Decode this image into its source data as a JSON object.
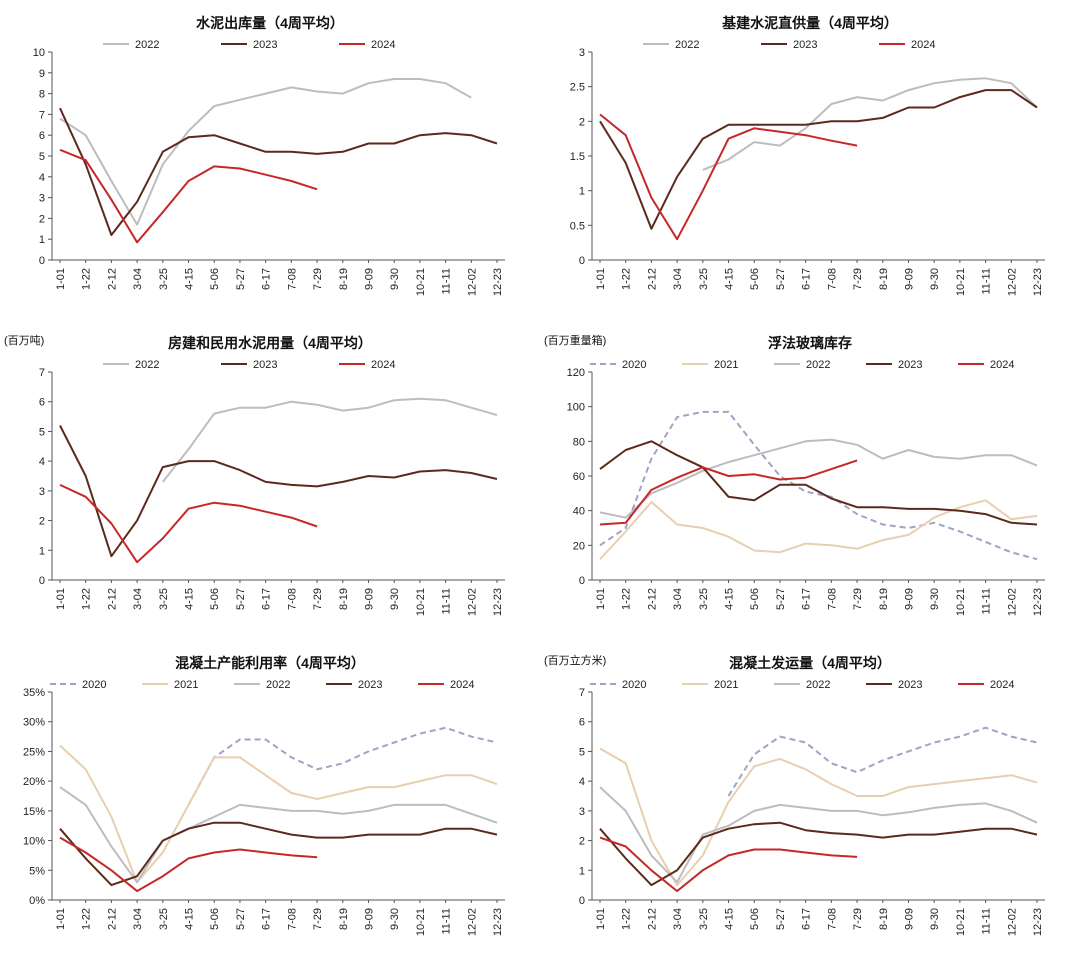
{
  "chart_data": [
    {
      "type": "line",
      "title": "水泥出库量（4周平均）",
      "unit": "",
      "ylim": [
        0,
        10
      ],
      "yticks": [
        "0",
        "1",
        "2",
        "3",
        "4",
        "5",
        "6",
        "7",
        "8",
        "9",
        "10"
      ],
      "categories": [
        "1-01",
        "1-22",
        "2-12",
        "3-04",
        "3-25",
        "4-15",
        "5-06",
        "5-27",
        "6-17",
        "7-08",
        "7-29",
        "8-19",
        "9-09",
        "9-30",
        "10-21",
        "11-11",
        "12-02",
        "12-23"
      ],
      "series": [
        {
          "name": "2022",
          "color": "#bdbdbd",
          "dash": "",
          "values": [
            6.8,
            6.0,
            3.8,
            1.7,
            4.6,
            6.2,
            7.4,
            7.7,
            8.0,
            8.3,
            8.1,
            8.0,
            8.5,
            8.7,
            8.7,
            8.5,
            7.8,
            null
          ]
        },
        {
          "name": "2023",
          "color": "#5c2a1c",
          "dash": "",
          "values": [
            7.3,
            4.6,
            1.2,
            2.8,
            5.2,
            5.9,
            6.0,
            5.6,
            5.2,
            5.2,
            5.1,
            5.2,
            5.6,
            5.6,
            6.0,
            6.1,
            6.0,
            5.6
          ]
        },
        {
          "name": "2024",
          "color": "#c62828",
          "dash": "",
          "values": [
            5.3,
            4.8,
            2.9,
            0.85,
            2.3,
            3.8,
            4.5,
            4.4,
            4.1,
            3.8,
            3.4,
            null,
            null,
            null,
            null,
            null,
            null,
            null
          ]
        }
      ]
    },
    {
      "type": "line",
      "title": "基建水泥直供量（4周平均）",
      "unit": "",
      "ylim": [
        0,
        3
      ],
      "yticks": [
        "0",
        "0.5",
        "1",
        "1.5",
        "2",
        "2.5",
        "3"
      ],
      "categories": [
        "1-01",
        "1-22",
        "2-12",
        "3-04",
        "3-25",
        "4-15",
        "5-06",
        "5-27",
        "6-17",
        "7-08",
        "7-29",
        "8-19",
        "9-09",
        "9-30",
        "10-21",
        "11-11",
        "12-02",
        "12-23"
      ],
      "series": [
        {
          "name": "2022",
          "color": "#bdbdbd",
          "dash": "",
          "values": [
            null,
            null,
            null,
            null,
            1.3,
            1.45,
            1.7,
            1.65,
            1.9,
            2.25,
            2.35,
            2.3,
            2.45,
            2.55,
            2.6,
            2.62,
            2.55,
            2.2
          ]
        },
        {
          "name": "2023",
          "color": "#5c2a1c",
          "dash": "",
          "values": [
            2.0,
            1.4,
            0.45,
            1.2,
            1.75,
            1.95,
            1.95,
            1.95,
            1.95,
            2.0,
            2.0,
            2.05,
            2.2,
            2.2,
            2.35,
            2.45,
            2.45,
            2.2
          ]
        },
        {
          "name": "2024",
          "color": "#c62828",
          "dash": "",
          "values": [
            2.1,
            1.8,
            0.9,
            0.3,
            1.0,
            1.75,
            1.9,
            1.85,
            1.8,
            1.72,
            1.65,
            null,
            null,
            null,
            null,
            null,
            null,
            null
          ]
        }
      ]
    },
    {
      "type": "line",
      "title": "房建和民用水泥用量（4周平均）",
      "unit": "(百万吨)",
      "ylim": [
        0,
        7
      ],
      "yticks": [
        "0",
        "1",
        "2",
        "3",
        "4",
        "5",
        "6",
        "7"
      ],
      "categories": [
        "1-01",
        "1-22",
        "2-12",
        "3-04",
        "3-25",
        "4-15",
        "5-06",
        "5-27",
        "6-17",
        "7-08",
        "7-29",
        "8-19",
        "9-09",
        "9-30",
        "10-21",
        "11-11",
        "12-02",
        "12-23"
      ],
      "series": [
        {
          "name": "2022",
          "color": "#bdbdbd",
          "dash": "",
          "values": [
            null,
            null,
            null,
            null,
            3.3,
            4.4,
            5.6,
            5.8,
            5.8,
            6.0,
            5.9,
            5.7,
            5.8,
            6.05,
            6.1,
            6.05,
            5.8,
            5.55
          ]
        },
        {
          "name": "2023",
          "color": "#5c2a1c",
          "dash": "",
          "values": [
            5.2,
            3.5,
            0.8,
            2.0,
            3.8,
            4.0,
            4.0,
            3.7,
            3.3,
            3.2,
            3.15,
            3.3,
            3.5,
            3.45,
            3.65,
            3.7,
            3.6,
            3.4
          ]
        },
        {
          "name": "2024",
          "color": "#c62828",
          "dash": "",
          "values": [
            3.2,
            2.8,
            1.9,
            0.6,
            1.4,
            2.4,
            2.6,
            2.5,
            2.3,
            2.1,
            1.8,
            null,
            null,
            null,
            null,
            null,
            null,
            null
          ]
        }
      ]
    },
    {
      "type": "line",
      "title": "浮法玻璃库存",
      "unit": "(百万重量箱)",
      "ylim": [
        0,
        120
      ],
      "yticks": [
        "0",
        "20",
        "40",
        "60",
        "80",
        "100",
        "120"
      ],
      "categories": [
        "1-01",
        "1-22",
        "2-12",
        "3-04",
        "3-25",
        "4-15",
        "5-06",
        "5-27",
        "6-17",
        "7-08",
        "7-29",
        "8-19",
        "9-09",
        "9-30",
        "10-21",
        "11-11",
        "12-02",
        "12-23"
      ],
      "series": [
        {
          "name": "2020",
          "color": "#9fa3c4",
          "dash": "6,4",
          "values": [
            20,
            30,
            70,
            94,
            97,
            97,
            78,
            60,
            51,
            48,
            38,
            32,
            30,
            33,
            28,
            22,
            16,
            12
          ]
        },
        {
          "name": "2021",
          "color": "#e8cfb0",
          "dash": "",
          "values": [
            12,
            28,
            45,
            32,
            30,
            25,
            17,
            16,
            21,
            20,
            18,
            23,
            26,
            36,
            42,
            46,
            35,
            37
          ]
        },
        {
          "name": "2022",
          "color": "#bdbdbd",
          "dash": "",
          "values": [
            39,
            36,
            50,
            56,
            63,
            68,
            72,
            76,
            80,
            81,
            78,
            70,
            75,
            71,
            70,
            72,
            72,
            66
          ]
        },
        {
          "name": "2023",
          "color": "#5c2a1c",
          "dash": "",
          "values": [
            64,
            75,
            80,
            72,
            65,
            48,
            46,
            55,
            55,
            47,
            42,
            42,
            41,
            41,
            40,
            38,
            33,
            32
          ]
        },
        {
          "name": "2024",
          "color": "#c62828",
          "dash": "",
          "values": [
            32,
            33,
            52,
            59,
            65,
            60,
            61,
            58,
            59,
            64,
            69,
            null,
            null,
            null,
            null,
            null,
            null,
            null
          ]
        }
      ]
    },
    {
      "type": "line",
      "title": "混凝土产能利用率（4周平均）",
      "unit": "",
      "ylim": [
        0,
        35
      ],
      "yticks": [
        "0%",
        "5%",
        "10%",
        "15%",
        "20%",
        "25%",
        "30%",
        "35%"
      ],
      "categories": [
        "1-01",
        "1-22",
        "2-12",
        "3-04",
        "3-25",
        "4-15",
        "5-06",
        "5-27",
        "6-17",
        "7-08",
        "7-29",
        "8-19",
        "9-09",
        "9-30",
        "10-21",
        "11-11",
        "12-02",
        "12-23"
      ],
      "series": [
        {
          "name": "2020",
          "color": "#9fa3c4",
          "dash": "6,4",
          "values": [
            null,
            null,
            null,
            null,
            null,
            16,
            24,
            27,
            27,
            24,
            22,
            23,
            25,
            26.5,
            28,
            29,
            27.5,
            26.5
          ]
        },
        {
          "name": "2021",
          "color": "#e8cfb0",
          "dash": "",
          "values": [
            26,
            22,
            14,
            3,
            8,
            16,
            24,
            24,
            21,
            18,
            17,
            18,
            19,
            19,
            20,
            21,
            21,
            19.5
          ]
        },
        {
          "name": "2022",
          "color": "#bdbdbd",
          "dash": "",
          "values": [
            19,
            16,
            9,
            3,
            10,
            12,
            14,
            16,
            15.5,
            15,
            15,
            14.5,
            15,
            16,
            16,
            16,
            14.5,
            13
          ]
        },
        {
          "name": "2023",
          "color": "#5c2a1c",
          "dash": "",
          "values": [
            12,
            7,
            2.5,
            4,
            10,
            12,
            13,
            13,
            12,
            11,
            10.5,
            10.5,
            11,
            11,
            11,
            12,
            12,
            11
          ]
        },
        {
          "name": "2024",
          "color": "#c62828",
          "dash": "",
          "values": [
            10.5,
            8,
            5,
            1.5,
            4,
            7,
            8,
            8.5,
            8,
            7.5,
            7.2,
            null,
            null,
            null,
            null,
            null,
            null,
            null
          ]
        }
      ]
    },
    {
      "type": "line",
      "title": "混凝土发运量（4周平均）",
      "unit": "(百万立方米)",
      "ylim": [
        0,
        7
      ],
      "yticks": [
        "0",
        "1",
        "2",
        "3",
        "4",
        "5",
        "6",
        "7"
      ],
      "categories": [
        "1-01",
        "1-22",
        "2-12",
        "3-04",
        "3-25",
        "4-15",
        "5-06",
        "5-27",
        "6-17",
        "7-08",
        "7-29",
        "8-19",
        "9-09",
        "9-30",
        "10-21",
        "11-11",
        "12-02",
        "12-23"
      ],
      "series": [
        {
          "name": "2020",
          "color": "#9fa3c4",
          "dash": "6,4",
          "values": [
            null,
            null,
            null,
            null,
            null,
            3.5,
            4.9,
            5.5,
            5.3,
            4.6,
            4.3,
            4.7,
            5.0,
            5.3,
            5.5,
            5.8,
            5.5,
            5.3
          ]
        },
        {
          "name": "2021",
          "color": "#e8cfb0",
          "dash": "",
          "values": [
            5.1,
            4.6,
            2.0,
            0.5,
            1.5,
            3.3,
            4.5,
            4.75,
            4.4,
            3.9,
            3.5,
            3.5,
            3.8,
            3.9,
            4.0,
            4.1,
            4.2,
            3.95
          ]
        },
        {
          "name": "2022",
          "color": "#bdbdbd",
          "dash": "",
          "values": [
            3.8,
            3.0,
            1.5,
            0.6,
            2.2,
            2.5,
            3.0,
            3.2,
            3.1,
            3.0,
            3.0,
            2.85,
            2.95,
            3.1,
            3.2,
            3.25,
            3.0,
            2.6
          ]
        },
        {
          "name": "2023",
          "color": "#5c2a1c",
          "dash": "",
          "values": [
            2.4,
            1.4,
            0.5,
            1.0,
            2.1,
            2.4,
            2.55,
            2.6,
            2.35,
            2.25,
            2.2,
            2.1,
            2.2,
            2.2,
            2.3,
            2.4,
            2.4,
            2.2
          ]
        },
        {
          "name": "2024",
          "color": "#c62828",
          "dash": "",
          "values": [
            2.1,
            1.8,
            1.0,
            0.3,
            1.0,
            1.5,
            1.7,
            1.7,
            1.6,
            1.5,
            1.45,
            null,
            null,
            null,
            null,
            null,
            null,
            null
          ]
        }
      ]
    }
  ]
}
